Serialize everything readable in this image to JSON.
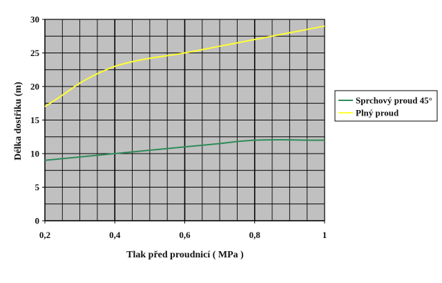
{
  "chart_data": {
    "type": "line",
    "title": "",
    "xlabel": "Tlak před proudnicí  ( MPa )",
    "ylabel": "Délka dostřiku (m)",
    "xlim": [
      0.2,
      1
    ],
    "ylim": [
      0,
      30
    ],
    "x_ticks": [
      "0,2",
      "0,4",
      "0,6",
      "0,8",
      "1"
    ],
    "y_ticks": [
      "0",
      "5",
      "10",
      "15",
      "20",
      "25",
      "30"
    ],
    "grid": true,
    "plot_background": "#c0c0c0",
    "legend_position": "right",
    "series": [
      {
        "name": "Sprchový proud 45°",
        "color": "#2e8b57",
        "x": [
          0.2,
          0.3,
          0.4,
          0.5,
          0.6,
          0.7,
          0.75,
          0.8,
          0.85,
          0.9,
          0.95,
          1.0
        ],
        "y": [
          9.0,
          9.5,
          10.0,
          10.5,
          11.0,
          11.5,
          11.8,
          12.0,
          12.05,
          12.05,
          12.0,
          12.0
        ]
      },
      {
        "name": "Plný proud",
        "color": "#ffff33",
        "x": [
          0.2,
          0.25,
          0.3,
          0.35,
          0.4,
          0.45,
          0.5,
          0.6,
          0.7,
          0.8,
          0.9,
          1.0
        ],
        "y": [
          17.0,
          18.7,
          20.5,
          21.9,
          23.0,
          23.7,
          24.2,
          25.0,
          26.0,
          27.0,
          28.0,
          29.0
        ]
      }
    ]
  }
}
